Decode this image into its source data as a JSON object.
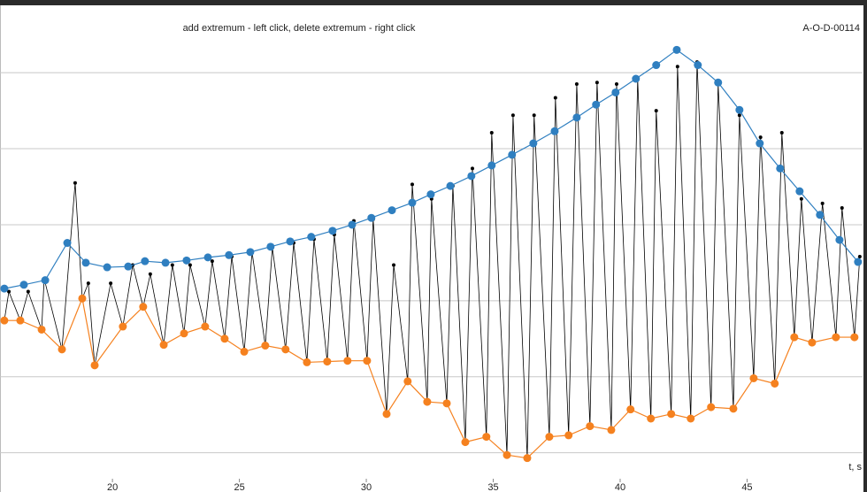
{
  "chart_data": {
    "type": "line",
    "title": "add extremum - left click, delete extremum - right click",
    "code": "A-O-D-00114",
    "xlabel": "t, s",
    "xlim": [
      15.57,
      49.55
    ],
    "xticks": [
      20,
      25,
      30,
      35,
      40,
      45
    ],
    "ylim": [
      -0.33,
      5.7
    ],
    "ygrid": [
      0,
      1,
      2,
      3,
      4,
      5
    ],
    "series": [
      {
        "color": "#000000",
        "marker": "small",
        "x": [
          15.74,
          15.92,
          16.37,
          16.68,
          17.21,
          17.31,
          18.01,
          18.53,
          18.81,
          19.05,
          19.3,
          19.93,
          20.41,
          20.8,
          21.21,
          21.49,
          22.02,
          22.36,
          22.82,
          23.06,
          23.65,
          23.93,
          24.42,
          24.7,
          25.19,
          25.5,
          26.02,
          26.3,
          26.82,
          27.14,
          27.66,
          27.94,
          28.46,
          28.74,
          29.26,
          29.51,
          30.03,
          30.27,
          30.8,
          31.08,
          31.63,
          31.81,
          32.4,
          32.57,
          33.17,
          33.41,
          33.9,
          34.18,
          34.73,
          34.94,
          35.54,
          35.78,
          36.34,
          36.61,
          37.21,
          37.45,
          37.97,
          38.29,
          38.81,
          39.09,
          39.65,
          39.86,
          40.41,
          40.69,
          41.21,
          41.42,
          42.01,
          42.26,
          42.78,
          43.03,
          43.58,
          43.86,
          44.46,
          44.7,
          45.26,
          45.53,
          46.09,
          46.37,
          46.86,
          47.14,
          47.56,
          47.97,
          48.5,
          48.74,
          49.23,
          49.44
        ],
        "values": [
          1.74,
          2.12,
          1.74,
          2.12,
          1.62,
          2.29,
          1.36,
          3.55,
          2.03,
          2.23,
          1.15,
          2.23,
          1.66,
          2.47,
          1.92,
          2.35,
          1.42,
          2.47,
          1.57,
          2.47,
          1.66,
          2.52,
          1.5,
          2.58,
          1.33,
          2.64,
          1.41,
          2.7,
          1.36,
          2.76,
          1.19,
          2.81,
          1.2,
          2.87,
          1.21,
          3.05,
          1.21,
          3.07,
          0.51,
          2.47,
          0.94,
          3.53,
          0.67,
          3.34,
          0.65,
          3.51,
          0.14,
          3.74,
          0.21,
          4.21,
          -0.03,
          4.44,
          -0.07,
          4.44,
          0.21,
          4.67,
          0.23,
          4.85,
          0.35,
          4.87,
          0.3,
          4.85,
          0.57,
          4.91,
          0.45,
          4.5,
          0.51,
          5.08,
          0.45,
          5.14,
          0.6,
          4.85,
          0.58,
          4.44,
          0.98,
          4.15,
          0.91,
          4.21,
          1.52,
          3.34,
          1.45,
          3.28,
          1.52,
          3.22,
          1.52,
          2.58
        ]
      },
      {
        "color": "#2f7fc0",
        "marker": "large",
        "x": [
          15.74,
          16.51,
          17.35,
          18.22,
          18.95,
          19.79,
          20.62,
          21.28,
          22.09,
          22.92,
          23.76,
          24.59,
          25.43,
          26.23,
          27.0,
          27.83,
          28.67,
          29.44,
          30.2,
          31.01,
          31.81,
          32.54,
          33.31,
          34.14,
          34.94,
          35.74,
          36.58,
          37.42,
          38.29,
          39.05,
          39.82,
          40.62,
          41.42,
          42.23,
          43.06,
          43.86,
          44.7,
          45.5,
          46.3,
          47.07,
          47.87,
          48.64,
          49.37
        ],
        "values": [
          2.16,
          2.21,
          2.27,
          2.76,
          2.5,
          2.44,
          2.45,
          2.52,
          2.5,
          2.53,
          2.57,
          2.6,
          2.64,
          2.71,
          2.78,
          2.84,
          2.92,
          3.0,
          3.09,
          3.19,
          3.29,
          3.4,
          3.51,
          3.64,
          3.78,
          3.92,
          4.07,
          4.23,
          4.41,
          4.58,
          4.74,
          4.92,
          5.1,
          5.3,
          5.1,
          4.87,
          4.51,
          4.07,
          3.74,
          3.44,
          3.13,
          2.8,
          2.51
        ]
      },
      {
        "color": "#f5811f",
        "marker": "large",
        "x": [
          15.74,
          16.37,
          17.21,
          18.01,
          18.81,
          19.3,
          20.41,
          21.21,
          22.02,
          22.82,
          23.65,
          24.42,
          25.19,
          26.02,
          26.82,
          27.66,
          28.46,
          29.26,
          30.03,
          30.8,
          31.63,
          32.4,
          33.17,
          33.9,
          34.73,
          35.54,
          36.34,
          37.21,
          37.97,
          38.81,
          39.65,
          40.41,
          41.21,
          42.01,
          42.78,
          43.58,
          44.46,
          45.26,
          46.09,
          46.86,
          47.56,
          48.5,
          49.23
        ],
        "values": [
          1.74,
          1.74,
          1.62,
          1.36,
          2.03,
          1.15,
          1.66,
          1.92,
          1.42,
          1.57,
          1.66,
          1.5,
          1.33,
          1.41,
          1.36,
          1.19,
          1.2,
          1.21,
          1.21,
          0.51,
          0.94,
          0.67,
          0.65,
          0.14,
          0.21,
          -0.03,
          -0.07,
          0.21,
          0.23,
          0.35,
          0.3,
          0.57,
          0.45,
          0.51,
          0.45,
          0.6,
          0.58,
          0.98,
          0.91,
          1.52,
          1.45,
          1.52,
          1.52
        ]
      }
    ]
  }
}
